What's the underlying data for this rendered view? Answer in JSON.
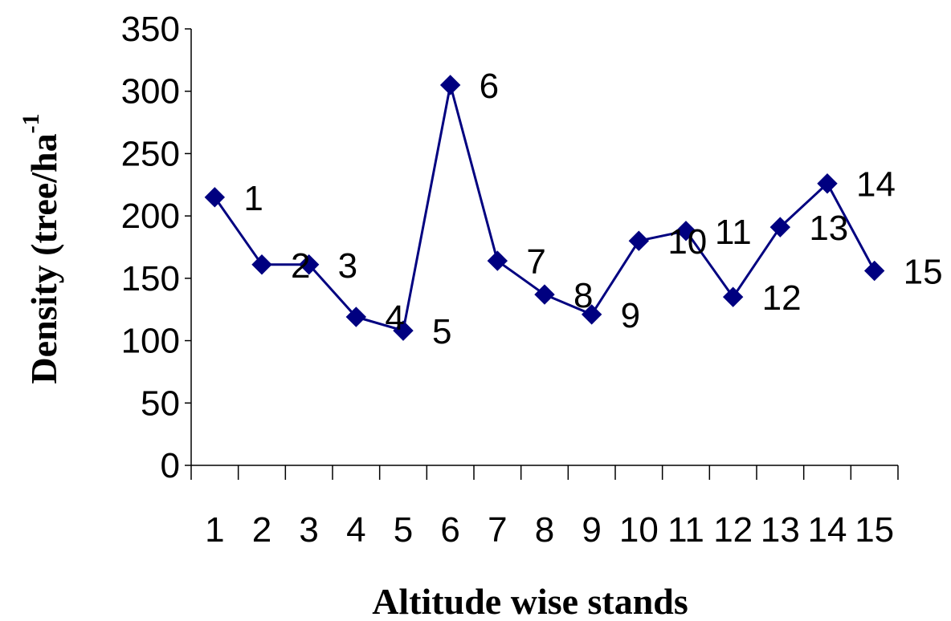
{
  "chart_data": {
    "type": "line",
    "categories": [
      "1",
      "2",
      "3",
      "4",
      "5",
      "6",
      "7",
      "8",
      "9",
      "10",
      "11",
      "12",
      "13",
      "14",
      "15"
    ],
    "series": [
      {
        "values": [
          215,
          161,
          161,
          119,
          108,
          305,
          164,
          137,
          121,
          180,
          188,
          135,
          191,
          226,
          156
        ],
        "color": "#000080",
        "marker": "diamond"
      }
    ],
    "point_labels": [
      "1",
      "2",
      "3",
      "4",
      "5",
      "6",
      "7",
      "8",
      "9",
      "10",
      "11",
      "12",
      "13",
      "14",
      "15"
    ],
    "xlabel": "Altitude wise stands",
    "ylabel": "Density (tree/ha",
    "ylabel_superscript": "-1",
    "ylim": [
      0,
      350
    ],
    "yticks": [
      0,
      50,
      100,
      150,
      200,
      250,
      300,
      350
    ],
    "grid": false,
    "legend": "none"
  }
}
